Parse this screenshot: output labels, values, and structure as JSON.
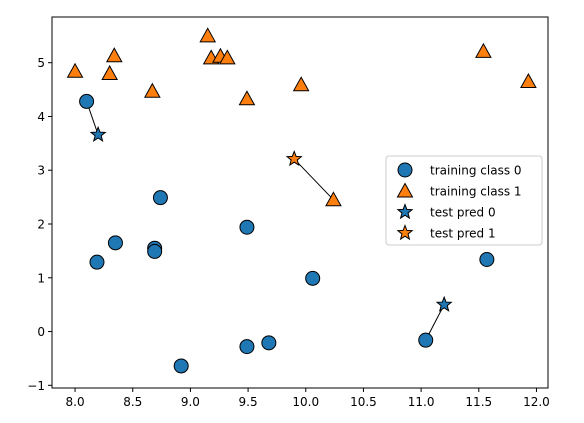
{
  "chart_data": {
    "type": "scatter",
    "title": "",
    "xlabel": "",
    "ylabel": "",
    "xlim": [
      7.8,
      12.1
    ],
    "ylim": [
      -1.05,
      5.85
    ],
    "xticks": [
      8.0,
      8.5,
      9.0,
      9.5,
      10.0,
      10.5,
      11.0,
      11.5,
      12.0
    ],
    "xtick_labels": [
      "8.0",
      "8.5",
      "9.0",
      "9.5",
      "10.0",
      "10.5",
      "11.0",
      "11.5",
      "12.0"
    ],
    "yticks": [
      -1,
      0,
      1,
      2,
      3,
      4,
      5
    ],
    "ytick_labels": [
      "−1",
      "0",
      "1",
      "2",
      "3",
      "4",
      "5"
    ],
    "grid": false,
    "legend_position": "center-right",
    "series": [
      {
        "name": "training class 0",
        "marker": "circle",
        "color": "#1f77b4",
        "points": [
          [
            8.1,
            4.28
          ],
          [
            8.19,
            1.29
          ],
          [
            8.35,
            1.65
          ],
          [
            8.69,
            1.55
          ],
          [
            8.69,
            1.49
          ],
          [
            8.74,
            2.49
          ],
          [
            8.92,
            -0.64
          ],
          [
            9.49,
            1.94
          ],
          [
            9.49,
            -0.28
          ],
          [
            9.68,
            -0.21
          ],
          [
            10.06,
            0.99
          ],
          [
            11.04,
            -0.16
          ],
          [
            11.57,
            1.34
          ]
        ]
      },
      {
        "name": "training class 1",
        "marker": "triangle",
        "color": "#ff7f0e",
        "points": [
          [
            8.0,
            4.84
          ],
          [
            8.3,
            4.8
          ],
          [
            8.34,
            5.13
          ],
          [
            8.67,
            4.47
          ],
          [
            9.15,
            5.5
          ],
          [
            9.18,
            5.09
          ],
          [
            9.26,
            5.12
          ],
          [
            9.32,
            5.09
          ],
          [
            9.49,
            4.33
          ],
          [
            9.96,
            4.59
          ],
          [
            10.24,
            2.45
          ],
          [
            11.54,
            5.21
          ],
          [
            11.93,
            4.65
          ]
        ]
      },
      {
        "name": "test pred 0",
        "marker": "star",
        "color": "#1f77b4",
        "points": [
          [
            8.2,
            3.66
          ],
          [
            11.2,
            0.5
          ]
        ]
      },
      {
        "name": "test pred 1",
        "marker": "star",
        "color": "#ff7f0e",
        "points": [
          [
            9.9,
            3.21
          ]
        ]
      }
    ],
    "neighbor_links": [
      {
        "from": [
          8.2,
          3.66
        ],
        "to": [
          8.1,
          4.28
        ]
      },
      {
        "from": [
          9.9,
          3.21
        ],
        "to": [
          10.24,
          2.45
        ]
      },
      {
        "from": [
          11.2,
          0.5
        ],
        "to": [
          11.04,
          -0.16
        ]
      }
    ]
  }
}
